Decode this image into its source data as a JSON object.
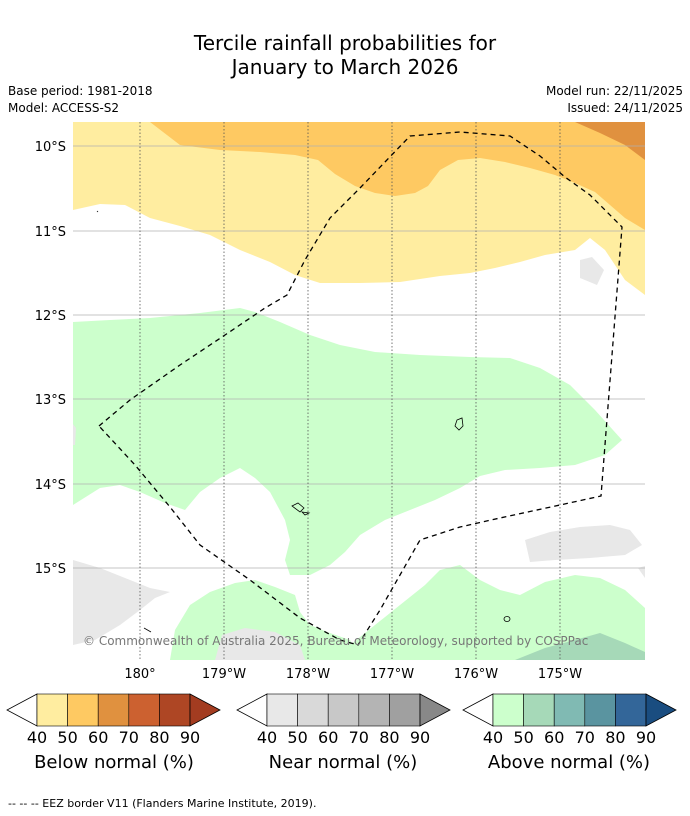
{
  "title_line1": "Tercile rainfall probabilities for",
  "title_line2": "January to March 2026",
  "base_period": "Base period: 1981-2018",
  "model": "Model: ACCESS-S2",
  "model_run": "Model run: 22/11/2025",
  "issued": "Issued: 24/11/2025",
  "lat_labels": [
    "10°S",
    "11°S",
    "12°S",
    "13°S",
    "14°S",
    "15°S"
  ],
  "lon_labels": [
    "180°",
    "179°W",
    "178°W",
    "177°W",
    "176°W",
    "175°W"
  ],
  "copyright": "© Commonwealth of Australia 2025, Bureau of Meteorology, supported by COSPPac",
  "legend": [
    {
      "label": "Below normal (%)",
      "colors": [
        "#ffeda0",
        "#fec962",
        "#e0913f",
        "#cc6130",
        "#ae4624",
        "#a33c20"
      ],
      "ticks": [
        "40",
        "50",
        "60",
        "70",
        "80",
        "90"
      ]
    },
    {
      "label": "Near normal (%)",
      "colors": [
        "#e8e8e8",
        "#d9d9d9",
        "#c8c8c8",
        "#b4b4b4",
        "#a0a0a0",
        "#888888"
      ],
      "ticks": [
        "40",
        "50",
        "60",
        "70",
        "80",
        "90"
      ]
    },
    {
      "label": "Above normal (%)",
      "colors": [
        "#ccffcc",
        "#a6d9b8",
        "#80bab3",
        "#5a94a0",
        "#336699",
        "#1a4d80"
      ],
      "ticks": [
        "40",
        "50",
        "60",
        "70",
        "80",
        "90"
      ]
    }
  ],
  "footnote": "--  --  -- EEZ border V11 (Flanders Marine Institute, 2019)."
}
